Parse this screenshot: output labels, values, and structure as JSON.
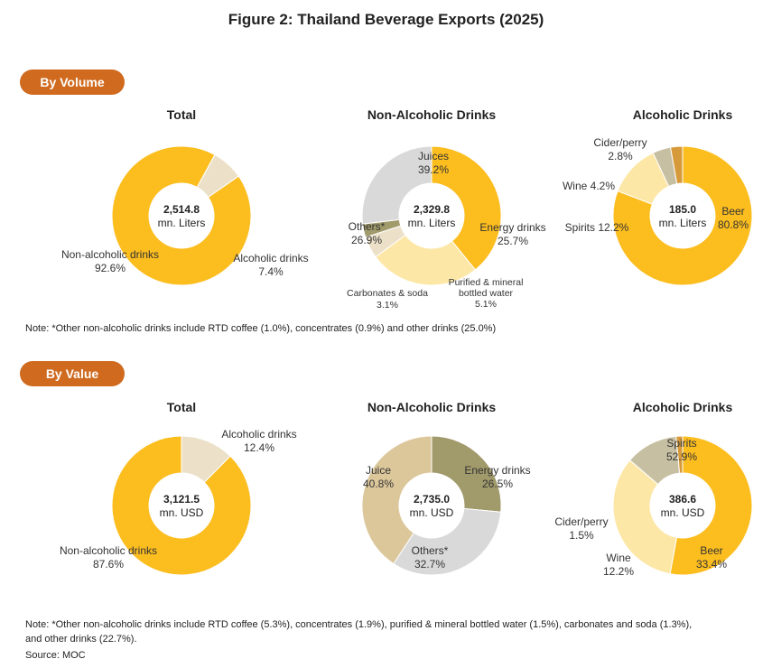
{
  "figure_title": "Figure 2: Thailand Beverage Exports  (2025)",
  "sections": {
    "volume_label": "By Volume",
    "value_label": "By Value"
  },
  "notes": {
    "volume": "Note: *Other non-alcoholic drinks include RTD coffee (1.0%), concentrates (0.9%) and other drinks (25.0%)",
    "value_line1": "Note: *Other non-alcoholic drinks include RTD coffee (5.3%), concentrates (1.9%), purified & mineral bottled water (1.5%), carbonates and soda (1.3%),",
    "value_line2": "and other drinks (22.7%).",
    "source": "Source: MOC"
  },
  "colors": {
    "gold": "#fcbd1f",
    "cream": "#ece1c8",
    "light_yellow": "#fde7a6",
    "grey": "#d9d9d9",
    "olive": "#a19a6b",
    "olive_light": "#c7bfa1",
    "tan": "#d8c294",
    "orange_brown": "#d79a3a",
    "pill": "#cf6a1f"
  },
  "chart_data": [
    {
      "type": "pie",
      "name": "vol_total",
      "title": "Total",
      "center_value": "2,514.8",
      "center_unit": "mn. Liters",
      "slices": [
        {
          "label": "Alcoholic drinks",
          "pct_text": "7.4%",
          "value": 7.4,
          "color": "#ece1c8"
        },
        {
          "label": "Non-alcoholic drinks",
          "pct_text": "92.6%",
          "value": 92.6,
          "color": "#fcbd1f"
        }
      ]
    },
    {
      "type": "pie",
      "name": "vol_nonalc",
      "title": "Non-Alcoholic Drinks",
      "center_value": "2,329.8",
      "center_unit": "mn. Liters",
      "slices": [
        {
          "label": "Juices",
          "pct_text": "39.2%",
          "value": 39.2,
          "color": "#fcbd1f"
        },
        {
          "label": "Energy drinks",
          "pct_text": "25.7%",
          "value": 25.7,
          "color": "#fde7a6"
        },
        {
          "label": "Purified & mineral bottled water",
          "pct_text": "5.1%",
          "value": 5.1,
          "color": "#ece1c8"
        },
        {
          "label": "Carbonates & soda",
          "pct_text": "3.1%",
          "value": 3.1,
          "color": "#a19a6b"
        },
        {
          "label": "Others*",
          "pct_text": "26.9%",
          "value": 26.9,
          "color": "#d9d9d9"
        }
      ]
    },
    {
      "type": "pie",
      "name": "vol_alc",
      "title": "Alcoholic Drinks",
      "center_value": "185.0",
      "center_unit": "mn. Liters",
      "slices": [
        {
          "label": "Beer",
          "pct_text": "80.8%",
          "value": 80.8,
          "color": "#fcbd1f"
        },
        {
          "label": "Spirits",
          "pct_text": "12.2%",
          "value": 12.2,
          "color": "#fde7a6"
        },
        {
          "label": "Wine",
          "pct_text": "4.2%",
          "value": 4.2,
          "color": "#c7bfa1"
        },
        {
          "label": "Cider/perry",
          "pct_text": "2.8%",
          "value": 2.8,
          "color": "#d79a3a"
        }
      ]
    },
    {
      "type": "pie",
      "name": "val_total",
      "title": "Total",
      "center_value": "3,121.5",
      "center_unit": "mn. USD",
      "slices": [
        {
          "label": "Alcoholic drinks",
          "pct_text": "12.4%",
          "value": 12.4,
          "color": "#ece1c8"
        },
        {
          "label": "Non-alcoholic drinks",
          "pct_text": "87.6%",
          "value": 87.6,
          "color": "#fcbd1f"
        }
      ]
    },
    {
      "type": "pie",
      "name": "val_nonalc",
      "title": "Non-Alcoholic Drinks",
      "center_value": "2,735.0",
      "center_unit": "mn. USD",
      "slices": [
        {
          "label": "Energy drinks",
          "pct_text": "26.5%",
          "value": 26.5,
          "color": "#a19a6b"
        },
        {
          "label": "Others*",
          "pct_text": "32.7%",
          "value": 32.7,
          "color": "#d9d9d9"
        },
        {
          "label": "Juice",
          "pct_text": "40.8%",
          "value": 40.8,
          "color": "#dcc79b"
        }
      ]
    },
    {
      "type": "pie",
      "name": "val_alc",
      "title": "Alcoholic Drinks",
      "center_value": "386.6",
      "center_unit": "mn. USD",
      "slices": [
        {
          "label": "Spirits",
          "pct_text": "52.9%",
          "value": 52.9,
          "color": "#fcbd1f"
        },
        {
          "label": "Beer",
          "pct_text": "33.4%",
          "value": 33.4,
          "color": "#fde7a6"
        },
        {
          "label": "Wine",
          "pct_text": "12.2%",
          "value": 12.2,
          "color": "#c7bfa1"
        },
        {
          "label": "Cider/perry",
          "pct_text": "1.5%",
          "value": 1.5,
          "color": "#d79a3a"
        }
      ]
    }
  ]
}
